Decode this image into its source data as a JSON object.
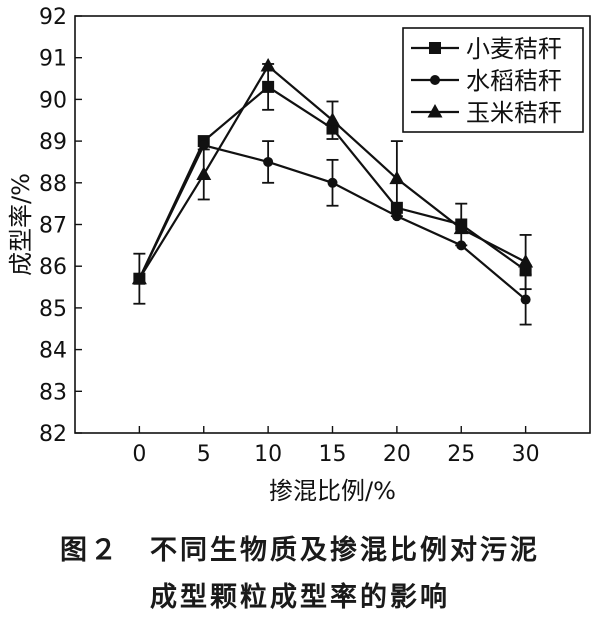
{
  "chart_data": {
    "type": "line",
    "x": [
      0,
      5,
      10,
      15,
      20,
      25,
      30
    ],
    "xlabel": "掺混比例/%",
    "ylabel": "成型率/%",
    "xlim": [
      -5,
      35
    ],
    "ylim": [
      82,
      92
    ],
    "xticks": [
      "0",
      "5",
      "10",
      "15",
      "20",
      "25",
      "30"
    ],
    "yticks": [
      "82",
      "83",
      "84",
      "85",
      "86",
      "87",
      "88",
      "89",
      "90",
      "91",
      "92"
    ],
    "grid": false,
    "legend_position": "top-right",
    "series": [
      {
        "name": "小麦秸秆",
        "marker": "square",
        "values": [
          85.7,
          89.0,
          90.3,
          89.3,
          87.4,
          87.0,
          85.9
        ],
        "errors": [
          0.0,
          0.0,
          0.55,
          0.0,
          0.0,
          0.5,
          0.0
        ]
      },
      {
        "name": "水稻秸秆",
        "marker": "circle",
        "values": [
          85.7,
          88.9,
          88.5,
          88.0,
          87.2,
          86.5,
          85.2
        ],
        "errors": [
          0.6,
          0.0,
          0.5,
          0.55,
          0.0,
          0.0,
          0.6
        ]
      },
      {
        "name": "玉米秸秆",
        "marker": "triangle",
        "values": [
          85.7,
          88.2,
          90.8,
          89.5,
          88.1,
          86.9,
          86.1
        ],
        "errors": [
          0.0,
          0.6,
          0.0,
          0.45,
          0.9,
          0.0,
          0.65
        ]
      }
    ]
  },
  "caption": {
    "line1": "图２　不同生物质及掺混比例对污泥",
    "line2": "成型颗粒成型率的影响"
  }
}
